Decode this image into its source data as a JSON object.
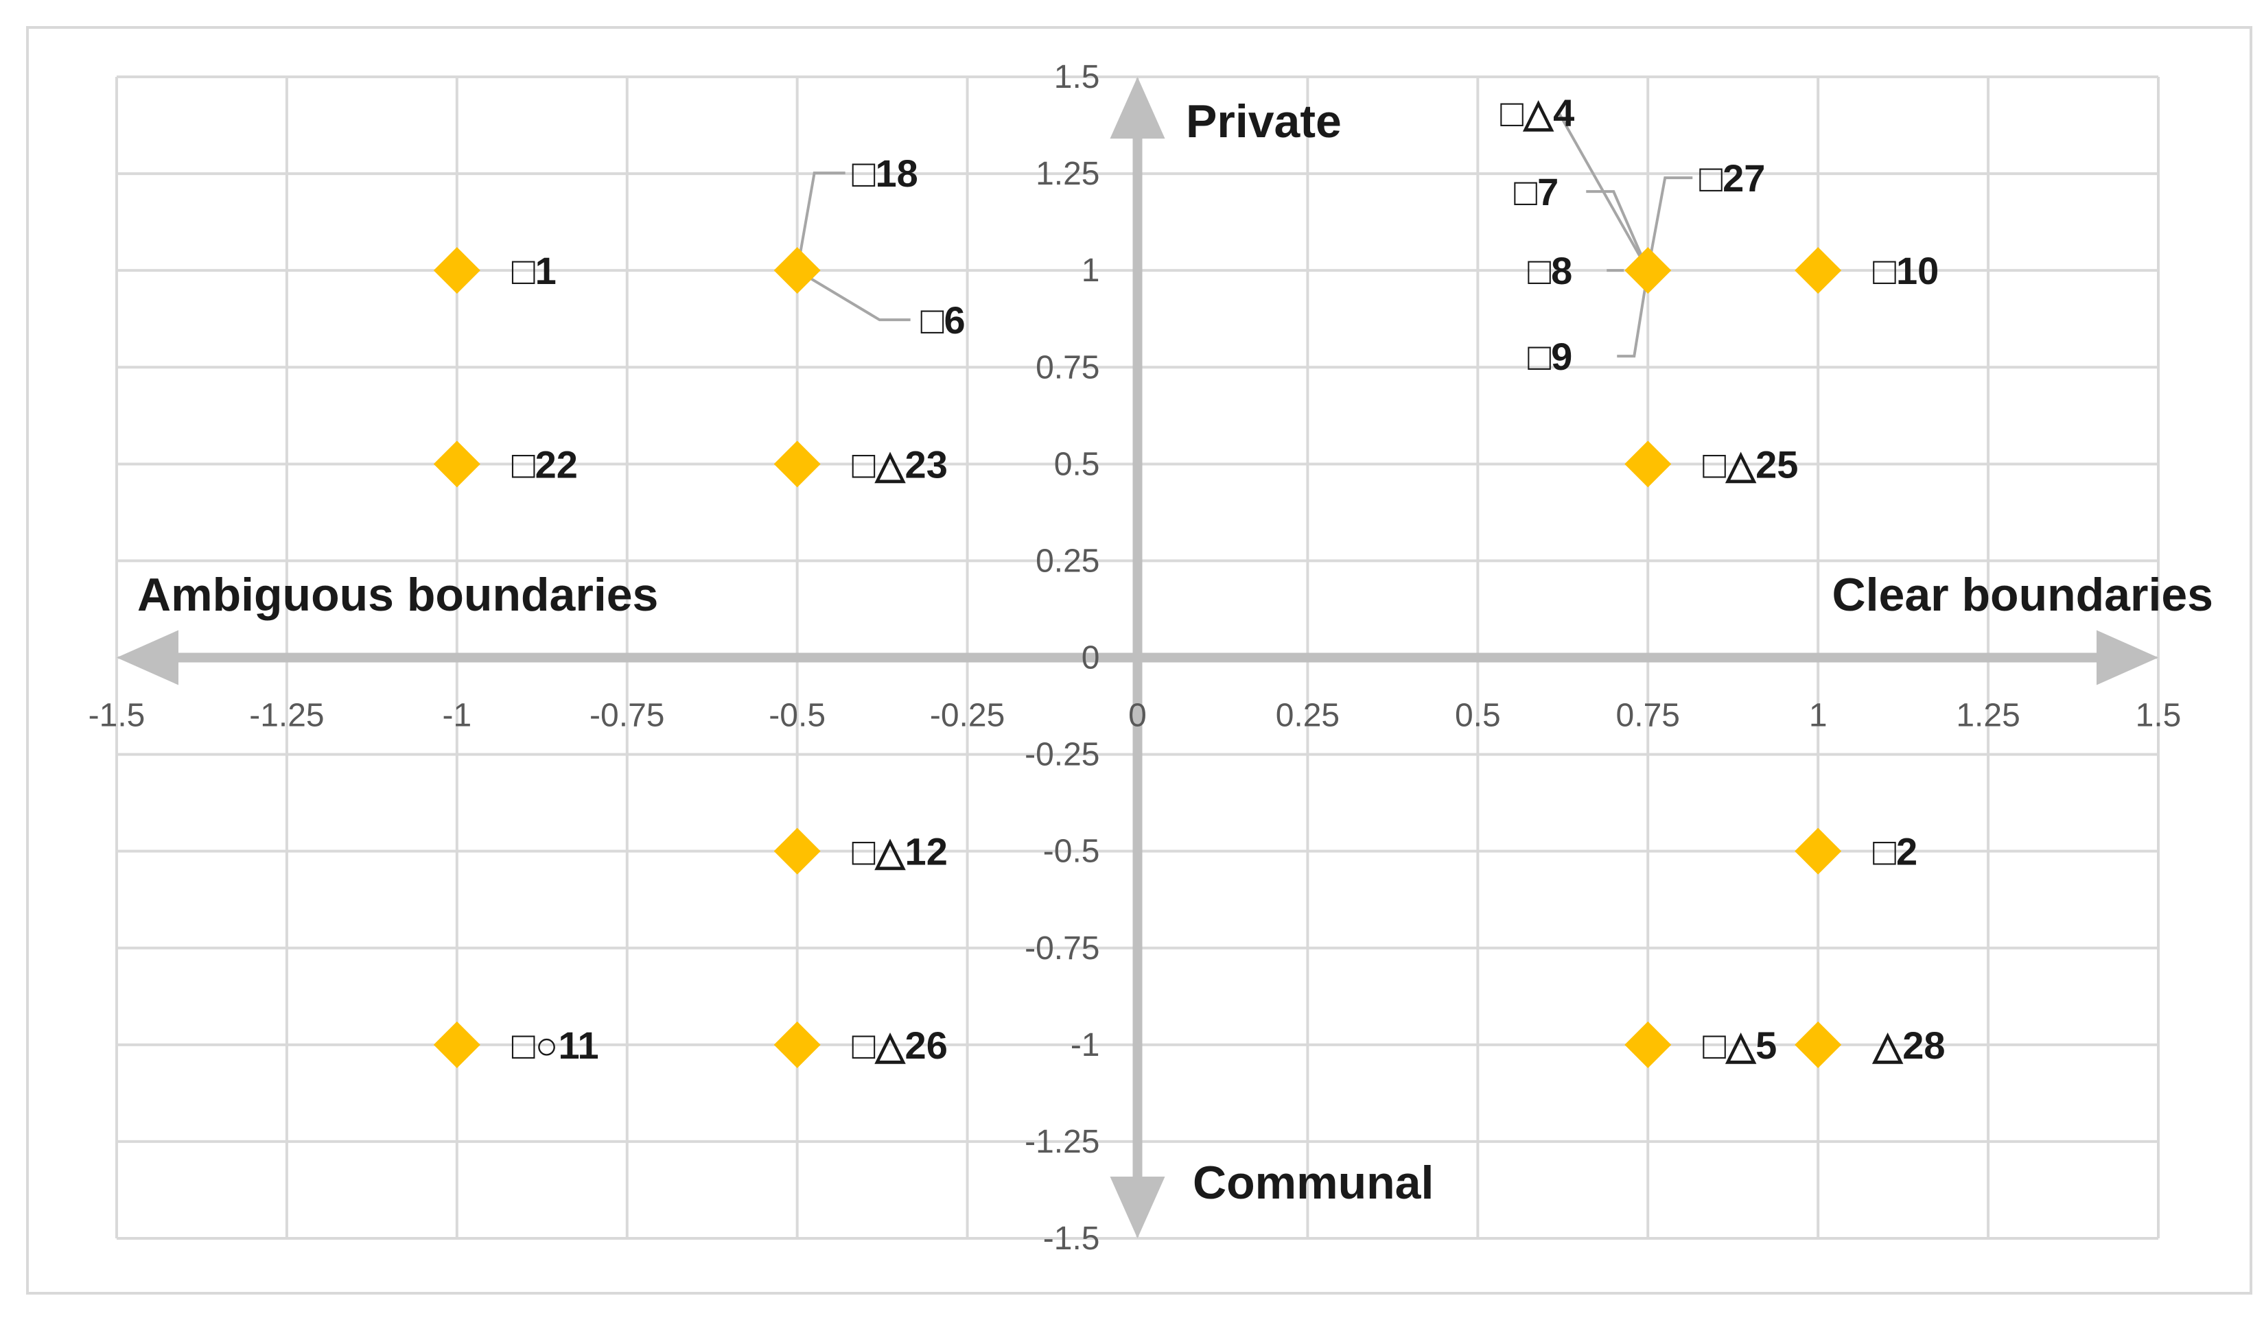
{
  "chart_data": {
    "type": "scatter",
    "title": "",
    "xlim": [
      -1.5,
      1.5
    ],
    "ylim": [
      -1.5,
      1.5
    ],
    "grid": true,
    "marker": "diamond",
    "marker_color": "#FFC000",
    "axis_arrow_color": "#bfbfbf",
    "x_ticks": [
      "-1.5",
      "-1.25",
      "-1",
      "-0.75",
      "-0.5",
      "-0.25",
      "0",
      "0.25",
      "0.5",
      "0.75",
      "1",
      "1.25",
      "1.5"
    ],
    "y_ticks": [
      "1.5",
      "1.25",
      "1",
      "0.75",
      "0.5",
      "0.25",
      "0",
      "-0.25",
      "-0.5",
      "-0.75",
      "-1",
      "-1.25",
      "-1.5"
    ],
    "axis_titles": {
      "left": "Ambiguous boundaries",
      "right": "Clear boundaries",
      "top": "Private",
      "bottom": "Communal"
    },
    "points": [
      {
        "x": -1,
        "y": 1,
        "label": "□1"
      },
      {
        "x": -0.5,
        "y": 1,
        "label": "□18"
      },
      {
        "x": -0.5,
        "y": 1,
        "label": "□6"
      },
      {
        "x": 0.75,
        "y": 1,
        "label": "□△4"
      },
      {
        "x": 0.75,
        "y": 1,
        "label": "□7"
      },
      {
        "x": 0.75,
        "y": 1,
        "label": "□27"
      },
      {
        "x": 0.75,
        "y": 1,
        "label": "□8"
      },
      {
        "x": 0.75,
        "y": 1,
        "label": "□9"
      },
      {
        "x": 1,
        "y": 1,
        "label": "□10"
      },
      {
        "x": -1,
        "y": 0.5,
        "label": "□22"
      },
      {
        "x": -0.5,
        "y": 0.5,
        "label": "□△23"
      },
      {
        "x": 0.75,
        "y": 0.5,
        "label": "□△25"
      },
      {
        "x": -0.5,
        "y": -0.5,
        "label": "□△12"
      },
      {
        "x": 1,
        "y": -0.5,
        "label": "□2"
      },
      {
        "x": -1,
        "y": -1,
        "label": "□○11"
      },
      {
        "x": -0.5,
        "y": -1,
        "label": "□△26"
      },
      {
        "x": 0.75,
        "y": -1,
        "label": "□△5"
      },
      {
        "x": 1,
        "y": -1,
        "label": "△28"
      }
    ]
  }
}
